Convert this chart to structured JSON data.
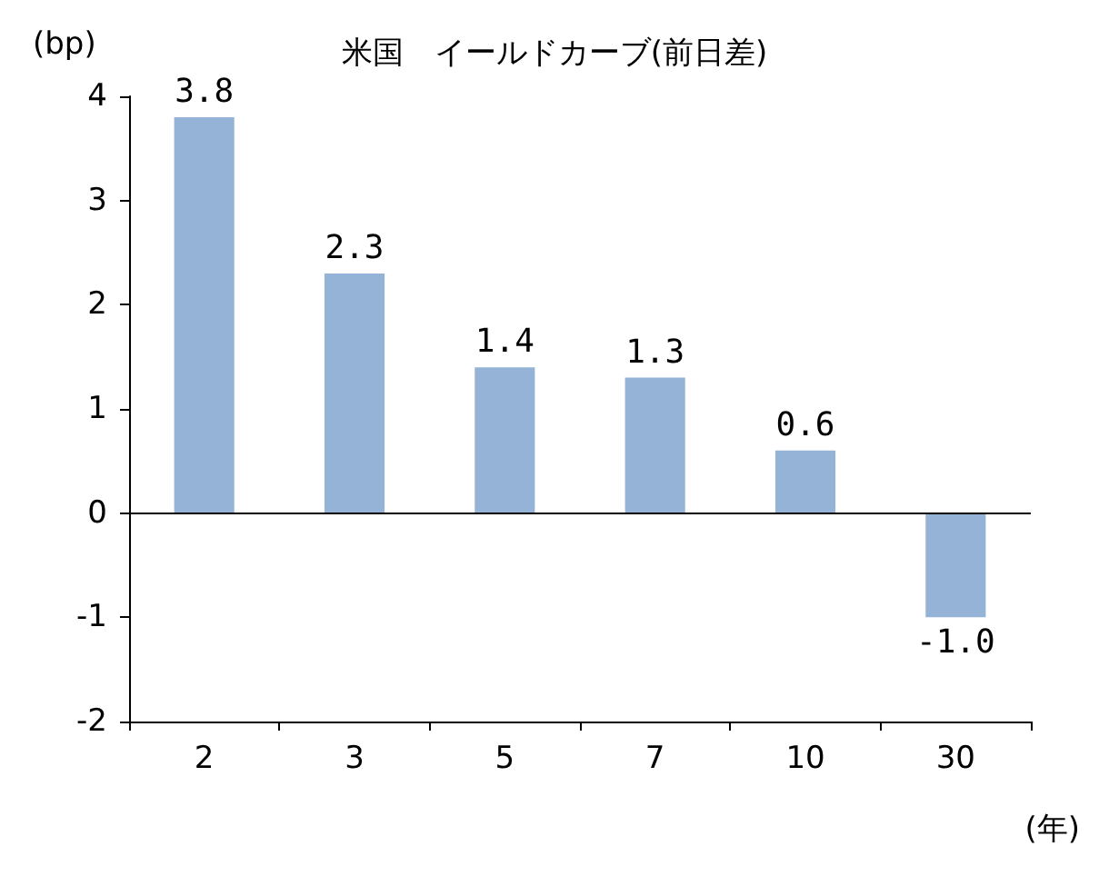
{
  "chart_data": {
    "type": "bar",
    "title": "米国　イールドカーブ(前日差)",
    "ylabel": "(bp)",
    "xlabel": "(年)",
    "categories": [
      "2",
      "3",
      "5",
      "7",
      "10",
      "30"
    ],
    "values": [
      3.8,
      2.3,
      1.4,
      1.3,
      0.6,
      -1.0
    ],
    "color": "#95b3d7",
    "ylim": [
      -2,
      4
    ],
    "yticks": [
      -2,
      -1,
      0,
      1,
      2,
      3,
      4
    ],
    "ref_lines": [
      {
        "axis": "y",
        "value": 0,
        "color": "#000000"
      }
    ],
    "value_labels": [
      "3.8",
      "2.3",
      "1.4",
      "1.3",
      "0.6",
      "-1.0"
    ],
    "grid": false
  }
}
